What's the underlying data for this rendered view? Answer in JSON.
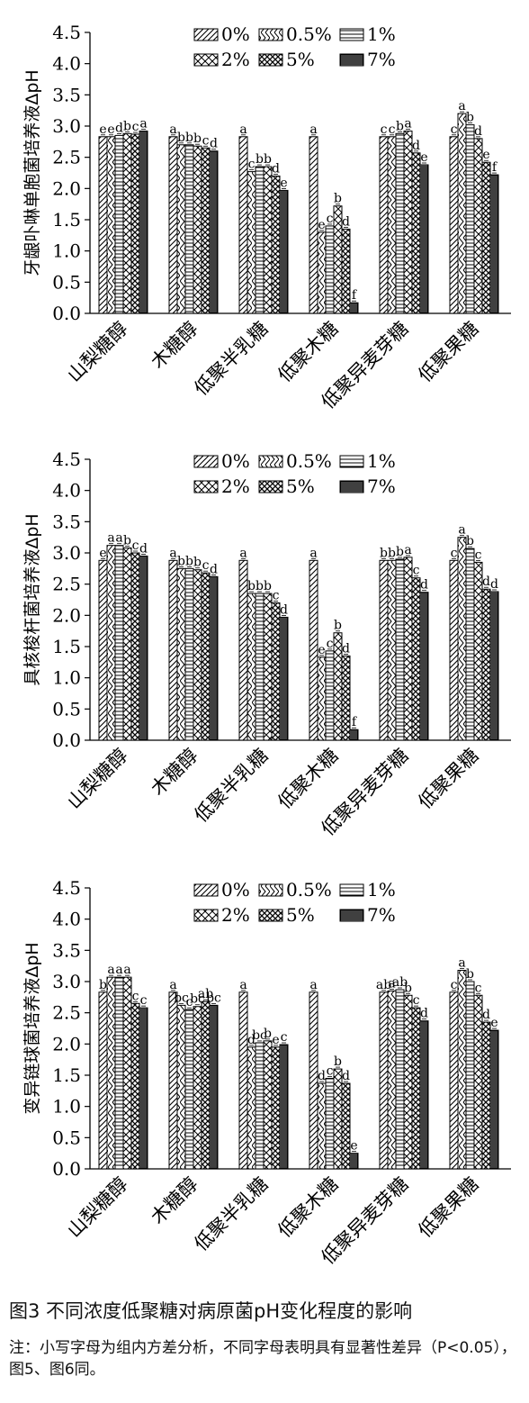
{
  "chart_data": [
    {
      "type": "bar",
      "ylabel": "牙龈卟啉单胞菌培养液ΔpH",
      "ylim": [
        0,
        4.5
      ],
      "yticks": [
        "0.0",
        "0.5",
        "1.0",
        "1.5",
        "2.0",
        "2.5",
        "3.0",
        "3.5",
        "4.0",
        "4.5"
      ],
      "categories": [
        "山梨糖醇",
        "木糖醇",
        "低聚半乳糖",
        "低聚木糖",
        "低聚异麦芽糖",
        "低聚果糖"
      ],
      "legend": [
        "0%",
        "0.5%",
        "1%",
        "2%",
        "5%",
        "7%"
      ],
      "values": [
        [
          2.83,
          2.83,
          2.85,
          2.88,
          2.87,
          2.92
        ],
        [
          2.83,
          2.7,
          2.7,
          2.68,
          2.65,
          2.6
        ],
        [
          2.83,
          2.27,
          2.35,
          2.35,
          2.2,
          1.97
        ],
        [
          2.83,
          1.3,
          1.4,
          1.72,
          1.35,
          0.17
        ],
        [
          2.83,
          2.83,
          2.88,
          2.92,
          2.57,
          2.38
        ],
        [
          2.83,
          3.2,
          3.02,
          2.8,
          2.42,
          2.22
        ]
      ],
      "letters": [
        [
          "e",
          "e",
          "d",
          "b",
          "c",
          "a"
        ],
        [
          "a",
          "b",
          "b",
          "b",
          "c",
          "d"
        ],
        [
          "a",
          "c",
          "b",
          "b",
          "d",
          "e"
        ],
        [
          "a",
          "e",
          "c",
          "b",
          "d",
          "f"
        ],
        [
          "c",
          "c",
          "b",
          "a",
          "d",
          "e"
        ],
        [
          "c",
          "a",
          "b",
          "d",
          "e",
          "f"
        ]
      ]
    },
    {
      "type": "bar",
      "ylabel": "具核梭杆菌培养液ΔpH",
      "ylim": [
        0,
        4.5
      ],
      "yticks": [
        "0.0",
        "0.5",
        "1.0",
        "1.5",
        "2.0",
        "2.5",
        "3.0",
        "3.5",
        "4.0",
        "4.5"
      ],
      "categories": [
        "山梨糖醇",
        "木糖醇",
        "低聚半乳糖",
        "低聚木糖",
        "低聚异麦芽糖",
        "低聚果糖"
      ],
      "legend": [
        "0%",
        "0.5%",
        "1%",
        "2%",
        "5%",
        "7%"
      ],
      "values": [
        [
          2.88,
          3.12,
          3.12,
          3.08,
          3.0,
          2.95
        ],
        [
          2.88,
          2.75,
          2.75,
          2.73,
          2.68,
          2.62
        ],
        [
          2.88,
          2.35,
          2.35,
          2.35,
          2.2,
          1.97
        ],
        [
          2.88,
          1.33,
          1.43,
          1.72,
          1.35,
          0.17
        ],
        [
          2.88,
          2.88,
          2.9,
          2.93,
          2.6,
          2.37
        ],
        [
          2.88,
          3.25,
          3.07,
          2.85,
          2.42,
          2.38
        ]
      ],
      "letters": [
        [
          "e",
          "a",
          "a",
          "b",
          "c",
          "d"
        ],
        [
          "a",
          "b",
          "b",
          "b",
          "c",
          "d"
        ],
        [
          "a",
          "b",
          "b",
          "b",
          "c",
          "d"
        ],
        [
          "a",
          "e",
          "c",
          "b",
          "d",
          "f"
        ],
        [
          "b",
          "b",
          "b",
          "a",
          "c",
          "d"
        ],
        [
          "c",
          "a",
          "b",
          "c",
          "d",
          "d"
        ]
      ]
    },
    {
      "type": "bar",
      "ylabel": "变异链球菌培养液ΔpH",
      "ylim": [
        0,
        4.5
      ],
      "yticks": [
        "0.0",
        "0.5",
        "1.0",
        "1.5",
        "2.0",
        "2.5",
        "3.0",
        "3.5",
        "4.0",
        "4.5"
      ],
      "categories": [
        "山梨糖醇",
        "木糖醇",
        "低聚半乳糖",
        "低聚木糖",
        "低聚异麦芽糖",
        "低聚果糖"
      ],
      "legend": [
        "0%",
        "0.5%",
        "1%",
        "2%",
        "5%",
        "7%"
      ],
      "values": [
        [
          2.83,
          3.07,
          3.07,
          3.07,
          2.65,
          2.58
        ],
        [
          2.83,
          2.62,
          2.55,
          2.6,
          2.68,
          2.62
        ],
        [
          2.83,
          1.95,
          2.02,
          2.05,
          1.95,
          1.99
        ],
        [
          2.83,
          1.37,
          1.45,
          1.6,
          1.37,
          0.25
        ],
        [
          2.83,
          2.85,
          2.87,
          2.78,
          2.58,
          2.37
        ],
        [
          2.83,
          3.18,
          3.0,
          2.78,
          2.35,
          2.22
        ]
      ],
      "letters": [
        [
          "b",
          "a",
          "a",
          "a",
          "c",
          "c"
        ],
        [
          "a",
          "bc",
          "c",
          "bc",
          "ab",
          "bc"
        ],
        [
          "a",
          "d",
          "bc",
          "b",
          "e",
          "c"
        ],
        [
          "a",
          "d",
          "c",
          "b",
          "d",
          "e"
        ],
        [
          "ab",
          "a",
          "ab",
          "b",
          "c",
          "d"
        ],
        [
          "c",
          "a",
          "b",
          "c",
          "d",
          "e"
        ]
      ]
    }
  ],
  "figure": {
    "title": "图3 不同浓度低聚糖对病原菌pH变化程度的影响",
    "note": "注：小写字母为组内方差分析，不同字母表明具有显著性差异（P<0.05），图5、图6同。"
  }
}
